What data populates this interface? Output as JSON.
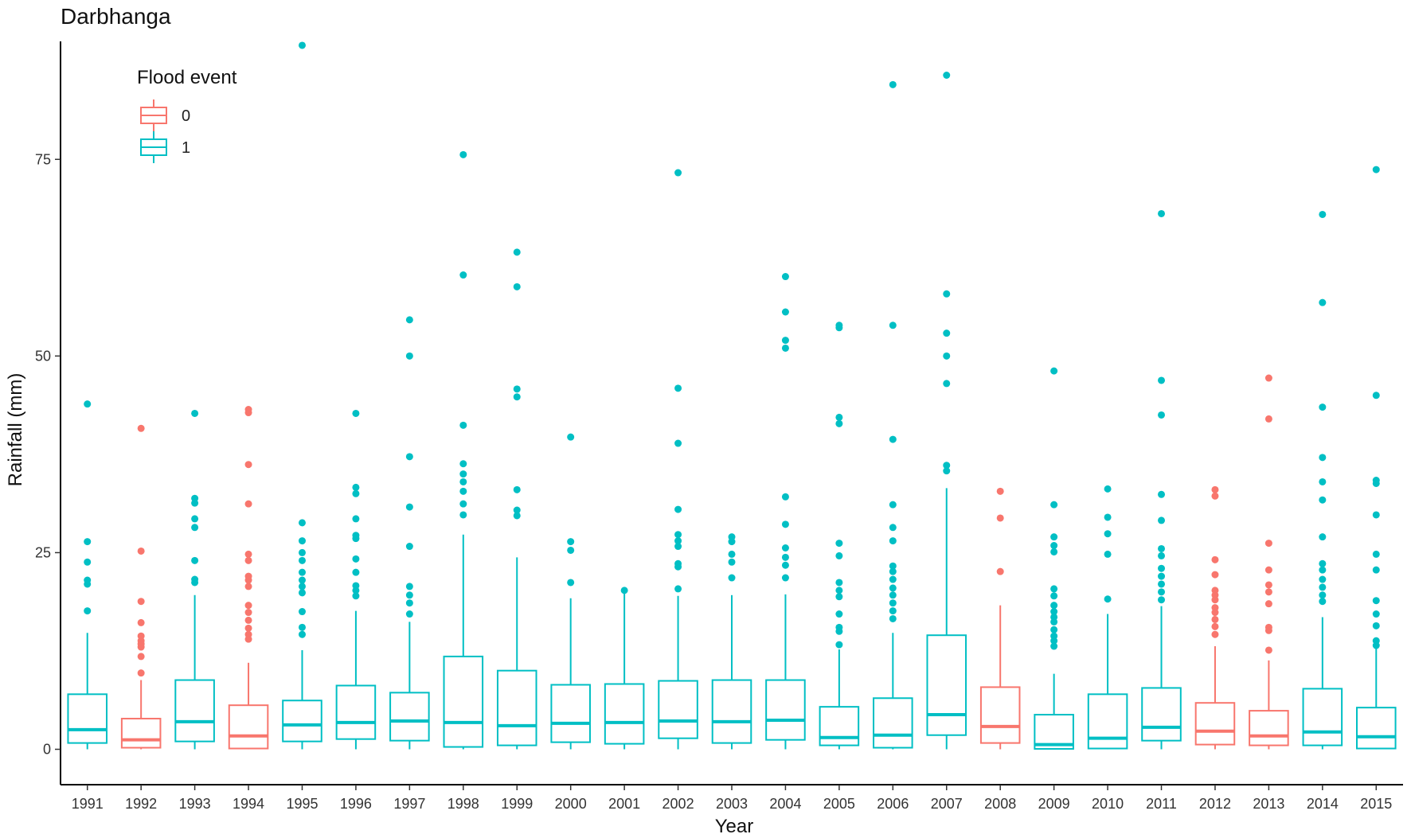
{
  "chart_data": {
    "type": "boxplot",
    "title": "Darbhanga",
    "xlabel": "Year",
    "ylabel": "Rainfall (mm)",
    "ylim": [
      -4.5,
      90
    ],
    "yticks": [
      0,
      25,
      50,
      75
    ],
    "legend": {
      "title": "Flood event",
      "position": "top-left",
      "entries": [
        {
          "key": "0",
          "label": "0",
          "color": "#F8766D"
        },
        {
          "key": "1",
          "label": "1",
          "color": "#00BFC4"
        }
      ]
    },
    "grid": false,
    "categories": [
      "1991",
      "1992",
      "1993",
      "1994",
      "1995",
      "1996",
      "1997",
      "1998",
      "1999",
      "2000",
      "2001",
      "2002",
      "2003",
      "2004",
      "2005",
      "2006",
      "2007",
      "2008",
      "2009",
      "2010",
      "2011",
      "2012",
      "2013",
      "2014",
      "2015"
    ],
    "boxes": [
      {
        "year": "1991",
        "flood": "1",
        "min": 0,
        "q1": 0.8,
        "median": 2.5,
        "q3": 7.0,
        "max": 14.8,
        "outliers": [
          17.6,
          21.0,
          21.5,
          23.8,
          26.4,
          43.9
        ]
      },
      {
        "year": "1992",
        "flood": "0",
        "min": 0,
        "q1": 0.2,
        "median": 1.2,
        "q3": 3.9,
        "max": 8.8,
        "outliers": [
          9.7,
          11.8,
          13.0,
          13.4,
          13.8,
          14.4,
          16.1,
          18.8,
          25.2,
          40.8
        ]
      },
      {
        "year": "1993",
        "flood": "1",
        "min": 0,
        "q1": 1.0,
        "median": 3.5,
        "q3": 8.8,
        "max": 19.6,
        "outliers": [
          21.2,
          21.6,
          24.0,
          28.2,
          29.3,
          31.3,
          31.9,
          42.7
        ]
      },
      {
        "year": "1994",
        "flood": "0",
        "min": 0,
        "q1": 0.1,
        "median": 1.7,
        "q3": 5.6,
        "max": 11.0,
        "outliers": [
          14.0,
          14.6,
          15.4,
          16.4,
          17.4,
          18.3,
          20.7,
          21.5,
          22.0,
          24.0,
          24.8,
          31.2,
          36.2,
          42.8,
          43.2
        ]
      },
      {
        "year": "1995",
        "flood": "1",
        "min": 0,
        "q1": 1.0,
        "median": 3.1,
        "q3": 6.2,
        "max": 12.6,
        "outliers": [
          14.6,
          15.5,
          17.5,
          19.9,
          20.7,
          21.5,
          22.5,
          24.0,
          25.0,
          26.5,
          28.8,
          89.5
        ]
      },
      {
        "year": "1996",
        "flood": "1",
        "min": 0,
        "q1": 1.3,
        "median": 3.4,
        "q3": 8.1,
        "max": 17.6,
        "outliers": [
          19.5,
          20.2,
          20.8,
          22.5,
          24.2,
          26.8,
          27.2,
          29.3,
          32.5,
          33.3,
          42.7
        ]
      },
      {
        "year": "1997",
        "flood": "1",
        "min": 0,
        "q1": 1.1,
        "median": 3.6,
        "q3": 7.2,
        "max": 16.2,
        "outliers": [
          17.2,
          18.6,
          19.6,
          20.7,
          25.8,
          30.8,
          37.2,
          50.0,
          54.6
        ]
      },
      {
        "year": "1998",
        "flood": "1",
        "min": 0,
        "q1": 0.3,
        "median": 3.4,
        "q3": 11.8,
        "max": 27.3,
        "outliers": [
          29.8,
          31.2,
          32.8,
          34.0,
          35.0,
          36.3,
          41.2,
          60.3,
          75.6
        ]
      },
      {
        "year": "1999",
        "flood": "1",
        "min": 0,
        "q1": 0.5,
        "median": 3.0,
        "q3": 10.0,
        "max": 24.4,
        "outliers": [
          29.7,
          30.4,
          33.0,
          44.8,
          45.8,
          58.8,
          63.2
        ]
      },
      {
        "year": "2000",
        "flood": "1",
        "min": 0,
        "q1": 0.9,
        "median": 3.3,
        "q3": 8.2,
        "max": 19.2,
        "outliers": [
          21.2,
          25.3,
          26.4,
          39.7
        ]
      },
      {
        "year": "2001",
        "flood": "1",
        "min": 0,
        "q1": 0.7,
        "median": 3.4,
        "q3": 8.3,
        "max": 19.8,
        "outliers": [
          20.2
        ]
      },
      {
        "year": "2002",
        "flood": "1",
        "min": 0,
        "q1": 1.4,
        "median": 3.6,
        "q3": 8.7,
        "max": 19.5,
        "outliers": [
          20.4,
          23.2,
          23.6,
          25.8,
          26.5,
          27.3,
          30.5,
          38.9,
          45.9,
          73.3
        ]
      },
      {
        "year": "2003",
        "flood": "1",
        "min": 0,
        "q1": 0.8,
        "median": 3.5,
        "q3": 8.8,
        "max": 19.6,
        "outliers": [
          21.8,
          23.8,
          24.8,
          26.4,
          27.0
        ]
      },
      {
        "year": "2004",
        "flood": "1",
        "min": 0,
        "q1": 1.2,
        "median": 3.7,
        "q3": 8.8,
        "max": 19.7,
        "outliers": [
          21.8,
          23.4,
          24.4,
          25.6,
          28.6,
          32.1,
          51.0,
          52.0,
          55.6,
          60.1
        ]
      },
      {
        "year": "2005",
        "flood": "1",
        "min": 0,
        "q1": 0.5,
        "median": 1.5,
        "q3": 5.4,
        "max": 12.7,
        "outliers": [
          13.3,
          15.0,
          15.5,
          17.2,
          19.4,
          20.2,
          21.2,
          24.6,
          26.2,
          41.4,
          42.2,
          53.6,
          53.9
        ]
      },
      {
        "year": "2006",
        "flood": "1",
        "min": 0,
        "q1": 0.2,
        "median": 1.8,
        "q3": 6.5,
        "max": 14.8,
        "outliers": [
          16.6,
          17.6,
          18.6,
          19.6,
          20.5,
          21.6,
          22.6,
          23.3,
          26.5,
          28.2,
          31.1,
          39.4,
          53.9,
          84.5
        ]
      },
      {
        "year": "2007",
        "flood": "1",
        "min": 0,
        "q1": 1.8,
        "median": 4.4,
        "q3": 14.5,
        "max": 33.2,
        "outliers": [
          35.4,
          36.1,
          46.5,
          50.0,
          52.9,
          57.9,
          85.7
        ]
      },
      {
        "year": "2008",
        "flood": "0",
        "min": 0,
        "q1": 0.8,
        "median": 2.9,
        "q3": 7.9,
        "max": 18.3,
        "outliers": [
          22.6,
          29.4,
          32.8
        ]
      },
      {
        "year": "2009",
        "flood": "1",
        "min": 0,
        "q1": 0.05,
        "median": 0.6,
        "q3": 4.4,
        "max": 9.6,
        "outliers": [
          13.1,
          13.8,
          14.4,
          15.2,
          16.2,
          16.8,
          17.5,
          18.3,
          19.5,
          20.4,
          25.1,
          25.9,
          27.0,
          31.1,
          48.1
        ]
      },
      {
        "year": "2010",
        "flood": "1",
        "min": 0,
        "q1": 0.1,
        "median": 1.4,
        "q3": 7.0,
        "max": 17.2,
        "outliers": [
          19.1,
          24.8,
          27.4,
          29.5,
          33.1
        ]
      },
      {
        "year": "2011",
        "flood": "1",
        "min": 0,
        "q1": 1.1,
        "median": 2.8,
        "q3": 7.8,
        "max": 18.2,
        "outliers": [
          19.0,
          20.0,
          21.0,
          22.0,
          23.0,
          24.6,
          25.5,
          29.1,
          32.4,
          42.5,
          46.9,
          68.1
        ]
      },
      {
        "year": "2012",
        "flood": "0",
        "min": 0,
        "q1": 0.6,
        "median": 2.3,
        "q3": 5.9,
        "max": 13.1,
        "outliers": [
          14.6,
          15.6,
          16.5,
          17.4,
          18.0,
          19.0,
          19.6,
          20.2,
          22.2,
          24.1,
          32.2,
          33.0
        ]
      },
      {
        "year": "2013",
        "flood": "0",
        "min": 0,
        "q1": 0.5,
        "median": 1.7,
        "q3": 4.9,
        "max": 11.3,
        "outliers": [
          12.6,
          15.1,
          15.5,
          18.5,
          20.0,
          20.9,
          22.8,
          26.2,
          42.0,
          47.2
        ]
      },
      {
        "year": "2014",
        "flood": "1",
        "min": 0,
        "q1": 0.5,
        "median": 2.2,
        "q3": 7.7,
        "max": 16.8,
        "outliers": [
          18.8,
          19.6,
          20.6,
          21.6,
          22.8,
          23.6,
          27.0,
          31.7,
          34.0,
          37.1,
          43.5,
          56.8,
          68.0
        ]
      },
      {
        "year": "2015",
        "flood": "1",
        "min": 0,
        "q1": 0.1,
        "median": 1.6,
        "q3": 5.3,
        "max": 12.8,
        "outliers": [
          13.2,
          13.8,
          15.7,
          17.2,
          18.9,
          22.8,
          24.8,
          29.8,
          33.8,
          34.2,
          45.0,
          73.7
        ]
      }
    ]
  }
}
